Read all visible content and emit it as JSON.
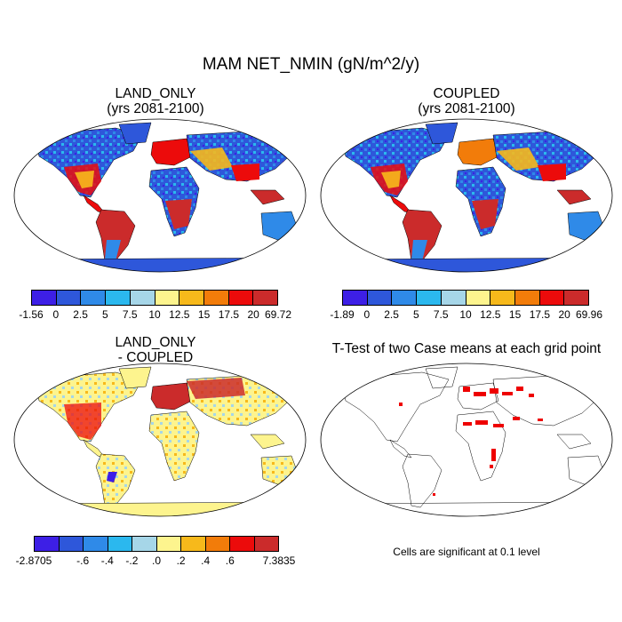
{
  "title": "MAM NET_NMIN (gN/m^2/y)",
  "panels": {
    "land_only": {
      "title": "LAND_ONLY\n(yrs 2081-2100)"
    },
    "coupled": {
      "title": "COUPLED\n(yrs 2081-2100)"
    },
    "diff": {
      "title": "LAND_ONLY\n- COUPLED"
    },
    "ttest": {
      "title": "T-Test of two Case means at each grid point",
      "note": "Cells are significant at 0.1 level"
    }
  },
  "colorbars": {
    "land_only": {
      "labels": [
        "-1.56",
        "0",
        "2.5",
        "5",
        "7.5",
        "10",
        "12.5",
        "15",
        "17.5",
        "20",
        "69.72"
      ],
      "colors": [
        "#3d1fe6",
        "#2e57da",
        "#2f8ae8",
        "#2bb8ee",
        "#a6d6e8",
        "#fdf48e",
        "#f7b91b",
        "#f27c0a",
        "#ec0b0b",
        "#cb2b2b"
      ]
    },
    "coupled": {
      "labels": [
        "-1.89",
        "0",
        "2.5",
        "5",
        "7.5",
        "10",
        "12.5",
        "15",
        "17.5",
        "20",
        "69.96"
      ],
      "colors": [
        "#3d1fe6",
        "#2e57da",
        "#2f8ae8",
        "#2bb8ee",
        "#a6d6e8",
        "#fdf48e",
        "#f7b91b",
        "#f27c0a",
        "#ec0b0b",
        "#cb2b2b"
      ]
    },
    "diff": {
      "labels": [
        "-2.8705",
        "",
        "-.6",
        "-.4",
        "-.2",
        ".0",
        ".2",
        ".4",
        ".6",
        "",
        "7.3835"
      ],
      "colors": [
        "#3d1fe6",
        "#2e57da",
        "#2f8ae8",
        "#2bb8ee",
        "#a6d6e8",
        "#fdf48e",
        "#f7b91b",
        "#f27c0a",
        "#ec0b0b",
        "#cb2b2b"
      ]
    }
  }
}
